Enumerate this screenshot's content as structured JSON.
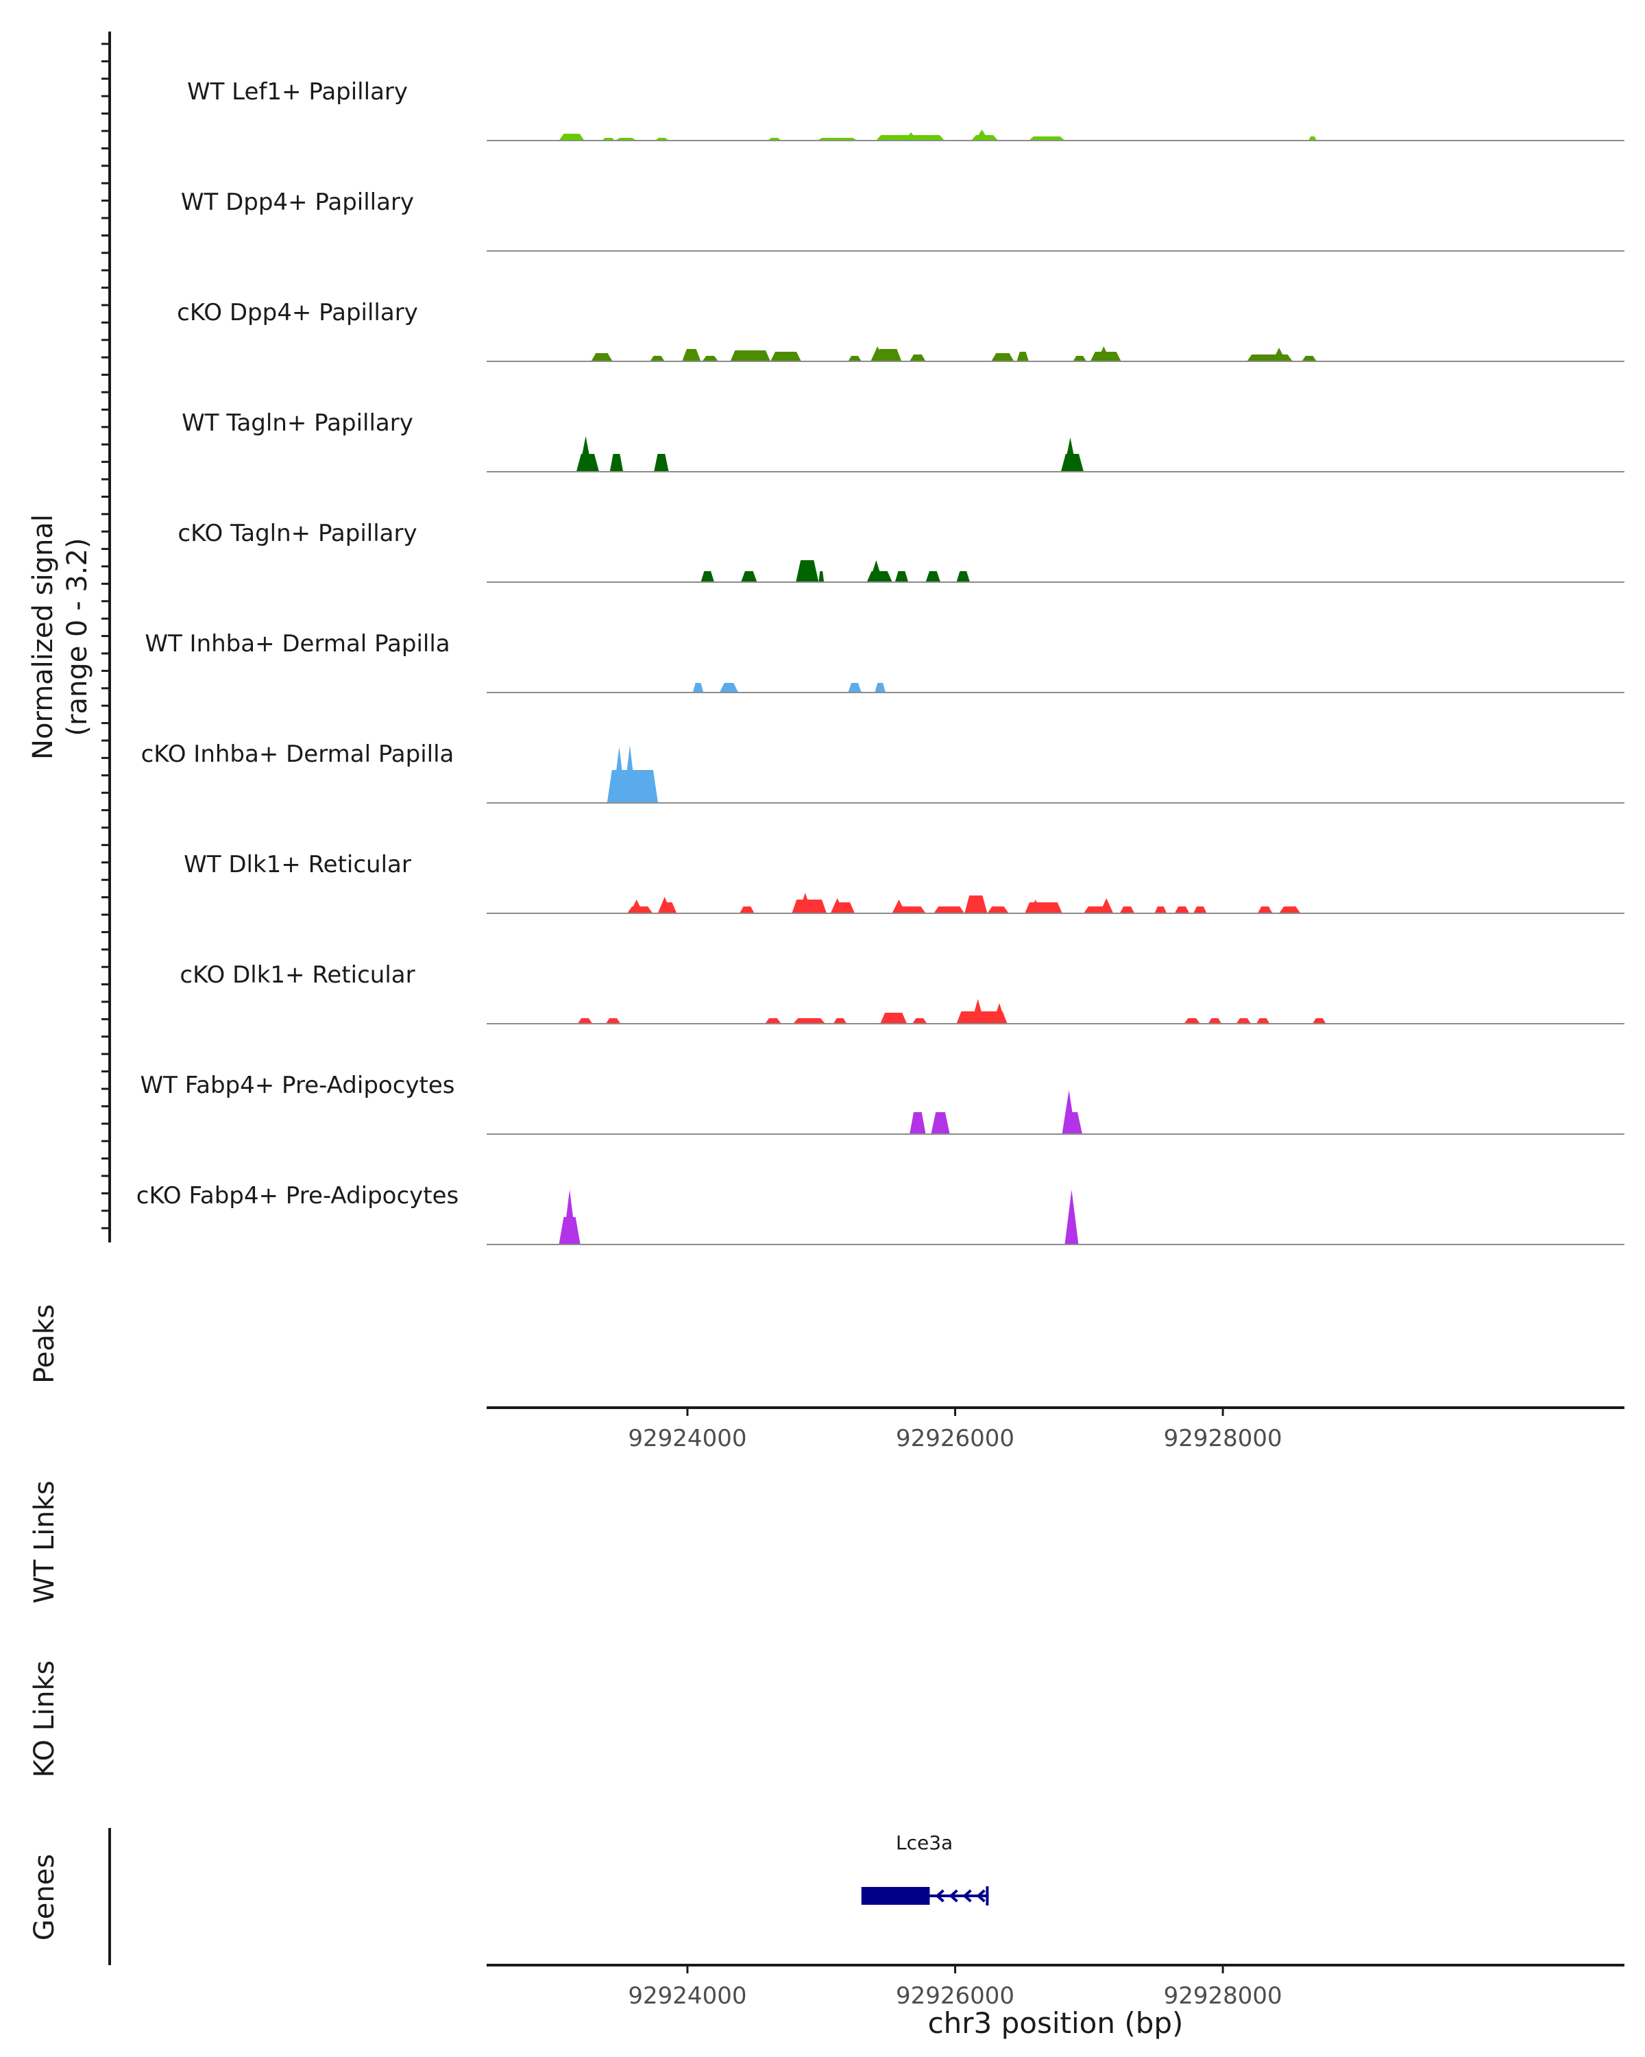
{
  "chart_data": {
    "type": "area",
    "title": "",
    "ylabel": "Normalized signal",
    "yrange_label": "(range 0 - 3.2)",
    "y_range": [
      0,
      3.2
    ],
    "x_range": [
      92922500,
      92931000
    ],
    "xlabel": "chr3 position (bp)",
    "xticks": [
      92924000,
      92926000,
      92928000
    ],
    "xtick_labels": [
      "92924000",
      "92926000",
      "92928000"
    ],
    "panel_labels": {
      "peaks": "Peaks",
      "wt_links": "WT Links",
      "ko_links": "KO Links",
      "genes": "Genes"
    },
    "series": [
      {
        "name": "WT Lef1+ Papillary",
        "color": "#66cc00",
        "segments": [
          [
            92923040,
            92923230,
            0.5
          ],
          [
            92923360,
            92923460,
            0.2
          ],
          [
            92923460,
            92923620,
            0.2
          ],
          [
            92923760,
            92923860,
            0.2
          ],
          [
            92924600,
            92924700,
            0.2
          ],
          [
            92924970,
            92925270,
            0.2
          ],
          [
            92925410,
            92925920,
            0.4
          ],
          [
            92926120,
            92926320,
            0.4
          ],
          [
            92926550,
            92926820,
            0.3
          ],
          [
            92928640,
            92928700,
            0.3
          ]
        ],
        "spikes": [
          [
            92926200,
            0.8
          ],
          [
            92925670,
            0.6
          ]
        ]
      },
      {
        "name": "WT Dpp4+ Papillary",
        "color": "#4d8c00",
        "segments": [],
        "spikes": []
      },
      {
        "name": "cKO Dpp4+ Papillary",
        "color": "#4d8c00",
        "segments": [
          [
            92923280,
            92923440,
            0.6
          ],
          [
            92923720,
            92923830,
            0.4
          ],
          [
            92923960,
            92924100,
            0.9
          ],
          [
            92924110,
            92924230,
            0.4
          ],
          [
            92924320,
            92924620,
            0.8
          ],
          [
            92924620,
            92924850,
            0.7
          ],
          [
            92925200,
            92925300,
            0.4
          ],
          [
            92925400,
            92925600,
            0.9
          ],
          [
            92925660,
            92925780,
            0.5
          ],
          [
            92926270,
            92926440,
            0.6
          ],
          [
            92926460,
            92926550,
            0.7
          ],
          [
            92926880,
            92926980,
            0.4
          ],
          [
            92927010,
            92927240,
            0.7
          ],
          [
            92928180,
            92928520,
            0.5
          ],
          [
            92928590,
            92928700,
            0.4
          ]
        ],
        "spikes": [
          [
            92927110,
            1.1
          ],
          [
            92928420,
            1.0
          ],
          [
            92925420,
            1.1
          ]
        ]
      },
      {
        "name": "WT Tagln+ Papillary",
        "color": "#006400",
        "segments": [
          [
            92923170,
            92923340,
            1.3
          ],
          [
            92923420,
            92923520,
            1.3
          ],
          [
            92923750,
            92923860,
            1.3
          ],
          [
            92926790,
            92926960,
            1.3
          ]
        ],
        "spikes": [
          [
            92923240,
            2.6
          ],
          [
            92926860,
            2.5
          ]
        ]
      },
      {
        "name": "cKO Tagln+ Papillary",
        "color": "#006400",
        "segments": [
          [
            92924100,
            92924200,
            0.8
          ],
          [
            92924400,
            92924520,
            0.8
          ],
          [
            92924810,
            92924980,
            1.6
          ],
          [
            92924980,
            92925020,
            0.8
          ],
          [
            92925340,
            92925530,
            0.8
          ],
          [
            92925550,
            92925650,
            0.8
          ],
          [
            92925780,
            92925890,
            0.8
          ],
          [
            92926010,
            92926110,
            0.8
          ]
        ],
        "spikes": [
          [
            92925410,
            1.6
          ]
        ]
      },
      {
        "name": "WT Inhba+ Dermal Papilla",
        "color": "#5aabeb",
        "segments": [
          [
            92924040,
            92924120,
            0.7
          ],
          [
            92924240,
            92924380,
            0.7
          ],
          [
            92925200,
            92925300,
            0.7
          ],
          [
            92925400,
            92925480,
            0.7
          ]
        ],
        "spikes": []
      },
      {
        "name": "cKO Inhba+ Dermal Papilla",
        "color": "#5aabeb",
        "segments": [
          [
            92923400,
            92923780,
            2.4
          ]
        ],
        "spikes": [
          [
            92923490,
            4.1
          ],
          [
            92923570,
            4.2
          ]
        ]
      },
      {
        "name": "WT Dlk1+ Reticular",
        "color": "#ff3333",
        "segments": [
          [
            92923550,
            92923740,
            0.5
          ],
          [
            92923780,
            92923920,
            0.8
          ],
          [
            92924390,
            92924500,
            0.5
          ],
          [
            92924780,
            92925040,
            1.0
          ],
          [
            92925070,
            92925250,
            0.8
          ],
          [
            92925530,
            92925780,
            0.5
          ],
          [
            92925840,
            92926070,
            0.5
          ],
          [
            92926070,
            92926240,
            1.3
          ],
          [
            92926240,
            92926400,
            0.5
          ],
          [
            92926520,
            92926800,
            0.8
          ],
          [
            92926960,
            92927180,
            0.5
          ],
          [
            92927230,
            92927340,
            0.5
          ],
          [
            92927490,
            92927580,
            0.5
          ],
          [
            92927640,
            92927750,
            0.5
          ],
          [
            92927780,
            92927880,
            0.5
          ],
          [
            92928260,
            92928370,
            0.5
          ],
          [
            92928420,
            92928580,
            0.5
          ]
        ],
        "spikes": [
          [
            92923620,
            1.0
          ],
          [
            92923830,
            1.2
          ],
          [
            92924880,
            1.5
          ],
          [
            92925120,
            1.1
          ],
          [
            92925580,
            1.0
          ],
          [
            92927130,
            1.1
          ],
          [
            92926600,
            1.0
          ]
        ]
      },
      {
        "name": "cKO Dlk1+ Reticular",
        "color": "#ff3333",
        "segments": [
          [
            92923180,
            92923290,
            0.4
          ],
          [
            92923390,
            92923500,
            0.4
          ],
          [
            92924580,
            92924700,
            0.4
          ],
          [
            92924790,
            92925030,
            0.4
          ],
          [
            92925090,
            92925190,
            0.4
          ],
          [
            92925440,
            92925640,
            0.8
          ],
          [
            92925680,
            92925790,
            0.4
          ],
          [
            92926010,
            92926390,
            0.9
          ],
          [
            92927710,
            92927830,
            0.4
          ],
          [
            92927890,
            92927990,
            0.4
          ],
          [
            92928100,
            92928210,
            0.4
          ],
          [
            92928250,
            92928350,
            0.4
          ],
          [
            92928670,
            92928770,
            0.4
          ]
        ],
        "spikes": [
          [
            92926170,
            1.8
          ],
          [
            92926330,
            1.5
          ]
        ]
      },
      {
        "name": "WT Fabp4+ Pre-Adipocytes",
        "color": "#b333e8",
        "segments": [
          [
            92925660,
            92925780,
            1.6
          ],
          [
            92925820,
            92925960,
            1.6
          ],
          [
            92926800,
            92926950,
            1.6
          ]
        ],
        "spikes": [
          [
            92926850,
            3.2
          ]
        ]
      },
      {
        "name": "cKO Fabp4+ Pre-Adipocytes",
        "color": "#b333e8",
        "segments": [
          [
            92923040,
            92923200,
            2.0
          ]
        ],
        "spikes": [
          [
            92923120,
            4.0
          ],
          [
            92926870,
            4.0
          ]
        ]
      }
    ],
    "genes": [
      {
        "name": "Lce3a",
        "start": 92925300,
        "end": 92926240,
        "cds_start": 92925300,
        "cds_end": 92925810,
        "strand": "-",
        "color": "#00008b"
      }
    ]
  }
}
